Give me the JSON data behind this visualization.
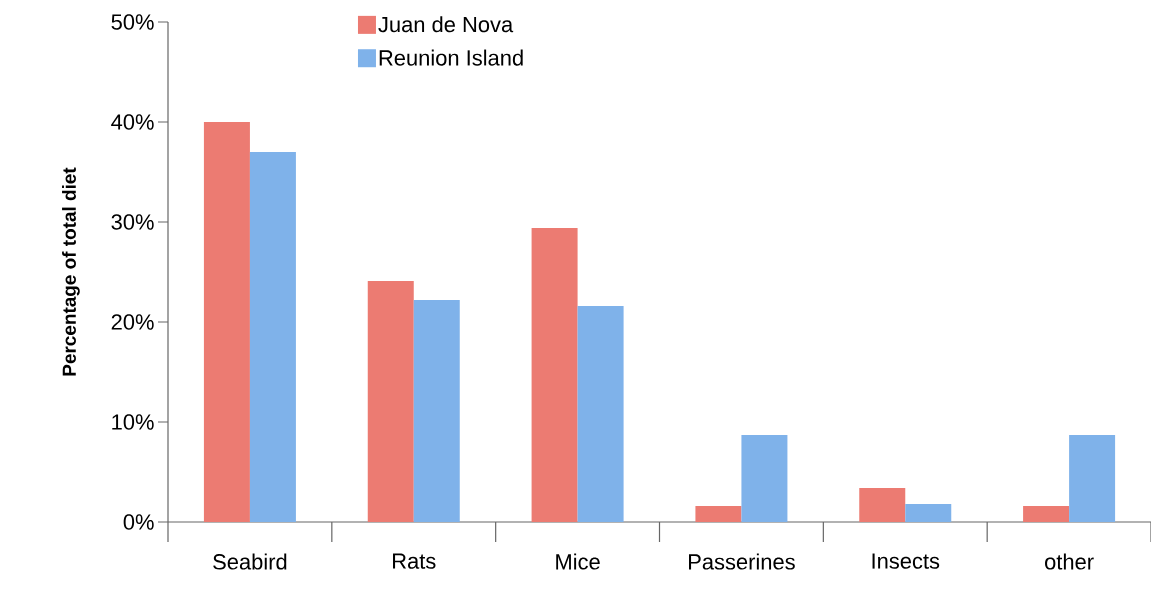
{
  "chart_data": {
    "type": "bar",
    "ylabel": "Percentage of total diet",
    "categories": [
      "Seabird",
      "Rats",
      "Mice",
      "Passerines",
      "Insects",
      "other"
    ],
    "series": [
      {
        "name": "Juan de Nova",
        "color": "#ec7b72",
        "values": [
          40,
          24.1,
          29.4,
          1.6,
          3.4,
          1.6
        ]
      },
      {
        "name": "Reunion Island",
        "color": "#7fb2ea",
        "values": [
          37,
          22.2,
          21.6,
          8.7,
          1.8,
          8.7
        ]
      }
    ],
    "ylim": [
      0,
      50
    ],
    "yticks": [
      {
        "value": 0,
        "label": "0%"
      },
      {
        "value": 10,
        "label": "10%"
      },
      {
        "value": 20,
        "label": "20%"
      },
      {
        "value": 30,
        "label": "30%"
      },
      {
        "value": 40,
        "label": "40%"
      },
      {
        "value": 50,
        "label": "50%"
      }
    ],
    "grid": false,
    "legend": "top left"
  }
}
